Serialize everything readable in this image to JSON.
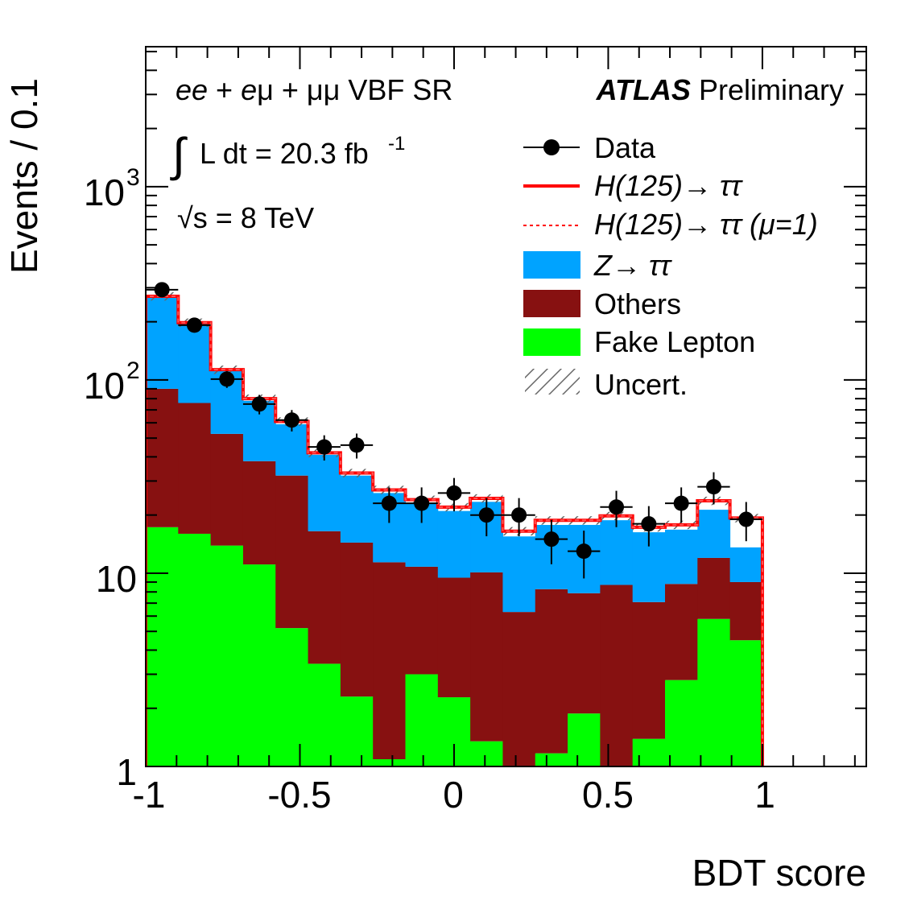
{
  "chart_data": {
    "type": "bar",
    "subtype": "stacked-histogram-log",
    "xlabel": "BDT score",
    "ylabel": "Events / 0.1",
    "xlim": [
      -1,
      1.337
    ],
    "ylim": [
      1,
      5300
    ],
    "yscale": "log",
    "bin_low": -1.0,
    "bin_high": 1.0,
    "n_bins": 19,
    "x_ticks": [
      "-1",
      "-0.5",
      "0",
      "0.5",
      "1"
    ],
    "x_tick_values": [
      -1,
      -0.5,
      0,
      0.5,
      1
    ],
    "y_ticks": [
      {
        "base": "1",
        "exp": ""
      },
      {
        "base": "10",
        "exp": ""
      },
      {
        "base": "10",
        "exp": "2"
      },
      {
        "base": "10",
        "exp": "3"
      }
    ],
    "y_tick_values": [
      1,
      10,
      100,
      1000
    ],
    "series": [
      {
        "name": "Fake Lepton",
        "color": "#00ff00",
        "values": [
          17.3,
          16.0,
          13.9,
          11.1,
          5.2,
          3.4,
          2.3,
          1.09,
          3.0,
          2.28,
          1.35,
          0.8,
          1.17,
          1.88,
          0.8,
          1.39,
          2.8,
          5.8,
          4.5
        ]
      },
      {
        "name": "Others",
        "color": "#871111",
        "values": [
          72.7,
          60.0,
          38.7,
          26.9,
          26.8,
          13.1,
          12.1,
          10.3,
          7.8,
          7.2,
          8.75,
          5.5,
          7.1,
          6.0,
          7.9,
          5.7,
          6.0,
          6.2,
          4.5
        ]
      },
      {
        "name": "Z→ ττ",
        "color": "#00a3ff",
        "values": [
          178,
          119,
          58.4,
          40,
          27,
          24.5,
          17.6,
          14.6,
          12.2,
          11.5,
          13.3,
          9.2,
          9.5,
          9.9,
          10.1,
          9.2,
          8.0,
          9.3,
          4.6
        ]
      },
      {
        "name": "H(125)→ ττ",
        "color": "#ff0000",
        "values": [
          3,
          3,
          2,
          2,
          2,
          1,
          1,
          1,
          1,
          1,
          1,
          1,
          1,
          1,
          1,
          1,
          1,
          2.4,
          5.7
        ]
      }
    ],
    "data": {
      "name": "Data",
      "values": [
        293,
        192,
        101,
        75,
        62,
        45,
        46,
        23,
        23,
        26,
        20,
        20,
        15,
        13,
        22,
        18,
        23,
        28,
        19
      ]
    },
    "uncertainty_fraction": 0.05
  },
  "annotations": {
    "channel_ee": "ee",
    "channel_rest1": " + ",
    "channel_e": "e",
    "channel_rest2": "μ + μμ VBF SR",
    "atlas": "ATLAS",
    "preliminary": " Preliminary",
    "lumi_integral": "∫",
    "lumi_text": "L dt = 20.3 fb",
    "lumi_exp": "-1",
    "energy": "√s = 8 TeV"
  },
  "legend": {
    "data": "Data",
    "higgs": "H(125)→ ττ",
    "higgs_mu": "H(125)→ ττ (μ=1)",
    "ztt": "Z→ ττ",
    "others": "Others",
    "fake": "Fake Lepton",
    "uncert": "Uncert."
  }
}
